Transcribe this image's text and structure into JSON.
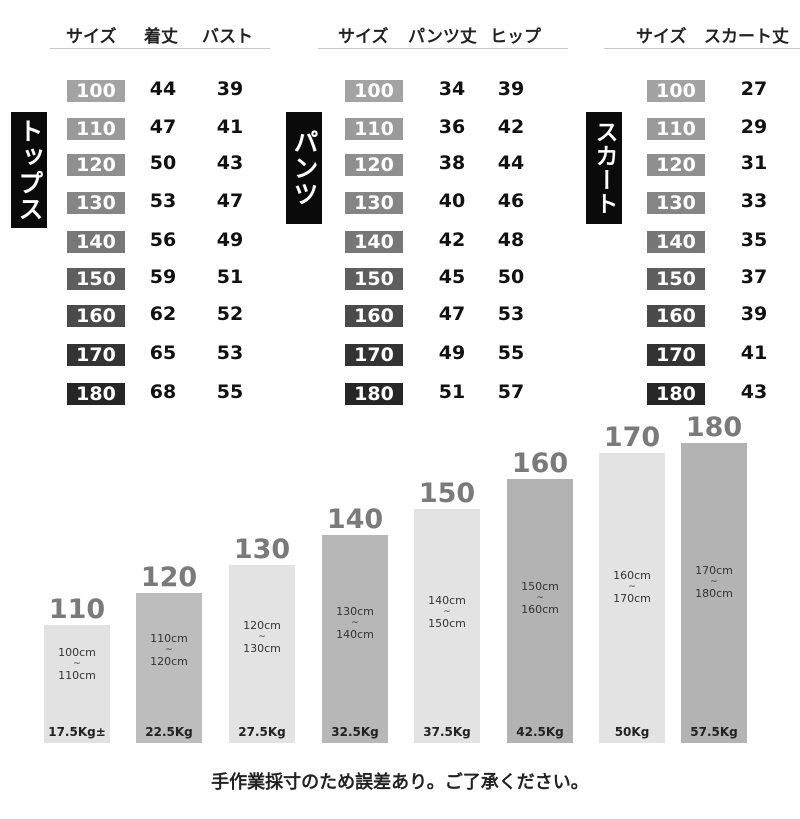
{
  "colors": {
    "chip_shades": [
      "#a3a3a3",
      "#9a9a9a",
      "#8f8f8f",
      "#858585",
      "#777777",
      "#5e5e5e",
      "#4a4a4a",
      "#333333",
      "#262626"
    ],
    "bar_shades": [
      "#e2e2e2",
      "#bdbdbd",
      "#e3e3e3",
      "#b7b7b7",
      "#e3e3e3",
      "#b3b3b3",
      "#e3e3e3",
      "#b3b3b3"
    ]
  },
  "tops": {
    "label": "トップス",
    "headers": [
      "サイズ",
      "着丈",
      "バスト"
    ],
    "rows": [
      {
        "size": "100",
        "a": "44",
        "b": "39"
      },
      {
        "size": "110",
        "a": "47",
        "b": "41"
      },
      {
        "size": "120",
        "a": "50",
        "b": "43"
      },
      {
        "size": "130",
        "a": "53",
        "b": "47"
      },
      {
        "size": "140",
        "a": "56",
        "b": "49"
      },
      {
        "size": "150",
        "a": "59",
        "b": "51"
      },
      {
        "size": "160",
        "a": "62",
        "b": "52"
      },
      {
        "size": "170",
        "a": "65",
        "b": "53"
      },
      {
        "size": "180",
        "a": "68",
        "b": "55"
      }
    ]
  },
  "pants": {
    "label": "パンツ",
    "headers": [
      "サイズ",
      "パンツ丈",
      "ヒップ"
    ],
    "rows": [
      {
        "size": "100",
        "a": "34",
        "b": "39"
      },
      {
        "size": "110",
        "a": "36",
        "b": "42"
      },
      {
        "size": "120",
        "a": "38",
        "b": "44"
      },
      {
        "size": "130",
        "a": "40",
        "b": "46"
      },
      {
        "size": "140",
        "a": "42",
        "b": "48"
      },
      {
        "size": "150",
        "a": "45",
        "b": "50"
      },
      {
        "size": "160",
        "a": "47",
        "b": "53"
      },
      {
        "size": "170",
        "a": "49",
        "b": "55"
      },
      {
        "size": "180",
        "a": "51",
        "b": "57"
      }
    ]
  },
  "skirt": {
    "label": "スカート",
    "headers": [
      "サイズ",
      "スカート丈"
    ],
    "rows": [
      {
        "size": "100",
        "a": "27"
      },
      {
        "size": "110",
        "a": "29"
      },
      {
        "size": "120",
        "a": "31"
      },
      {
        "size": "130",
        "a": "33"
      },
      {
        "size": "140",
        "a": "35"
      },
      {
        "size": "150",
        "a": "37"
      },
      {
        "size": "160",
        "a": "39"
      },
      {
        "size": "170",
        "a": "41"
      },
      {
        "size": "180",
        "a": "43"
      }
    ]
  },
  "heights": [
    {
      "size": "110",
      "low": "100cm",
      "tilde": "~",
      "high": "110cm",
      "weight": "17.5Kg±"
    },
    {
      "size": "120",
      "low": "110cm",
      "tilde": "~",
      "high": "120cm",
      "weight": "22.5Kg"
    },
    {
      "size": "130",
      "low": "120cm",
      "tilde": "~",
      "high": "130cm",
      "weight": "27.5Kg"
    },
    {
      "size": "140",
      "low": "130cm",
      "tilde": "~",
      "high": "140cm",
      "weight": "32.5Kg"
    },
    {
      "size": "150",
      "low": "140cm",
      "tilde": "~",
      "high": "150cm",
      "weight": "37.5Kg"
    },
    {
      "size": "160",
      "low": "150cm",
      "tilde": "~",
      "high": "160cm",
      "weight": "42.5Kg"
    },
    {
      "size": "170",
      "low": "160cm",
      "tilde": "~",
      "high": "170cm",
      "weight": "50Kg"
    },
    {
      "size": "180",
      "low": "170cm",
      "tilde": "~",
      "high": "180cm",
      "weight": "57.5Kg"
    }
  ],
  "note": "手作業採寸のため誤差あり。ご了承ください。"
}
